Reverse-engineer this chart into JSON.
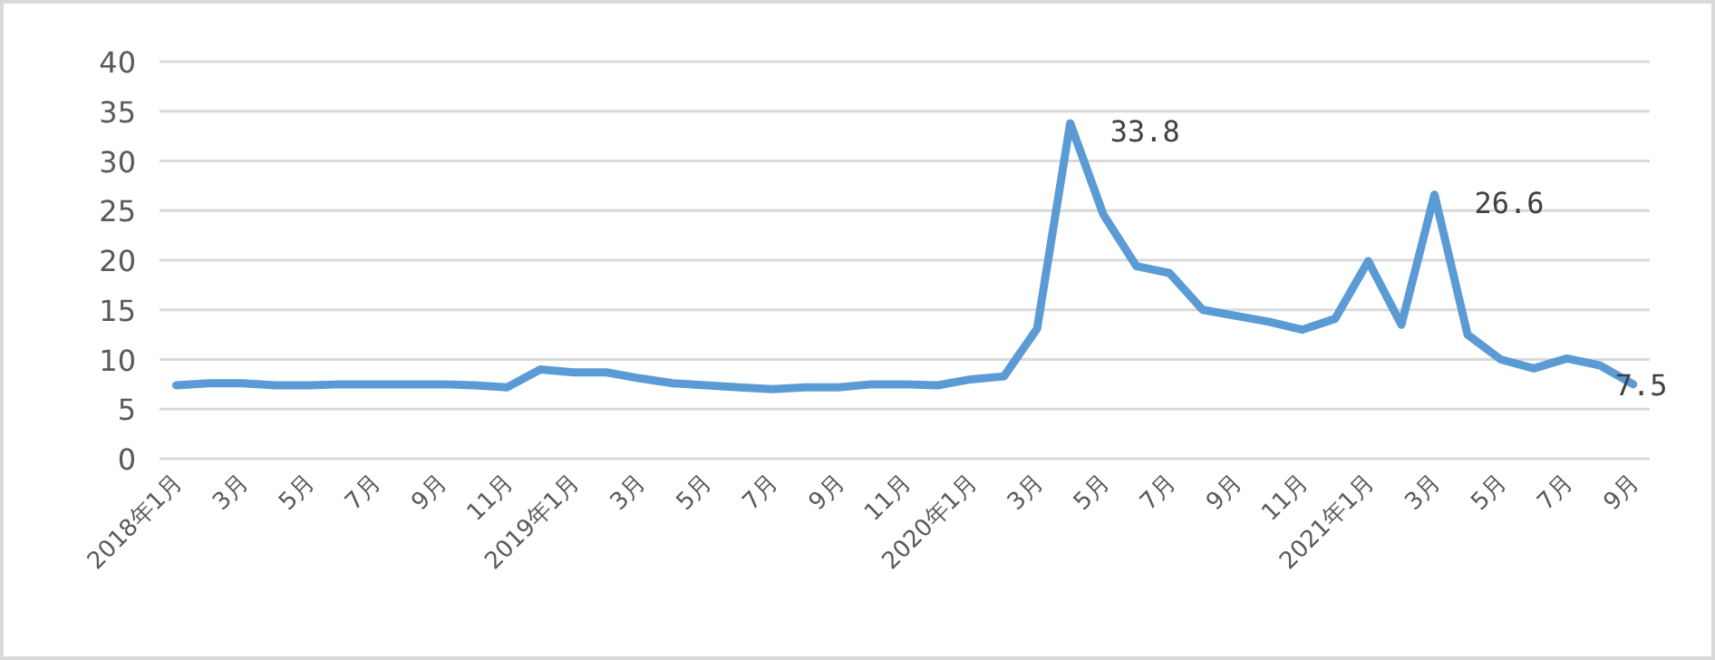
{
  "chart_data": {
    "type": "line",
    "categories": [
      "2018年1月",
      null,
      "3月",
      null,
      "5月",
      null,
      "7月",
      null,
      "9月",
      null,
      "11月",
      null,
      "2019年1月",
      null,
      "3月",
      null,
      "5月",
      null,
      "7月",
      null,
      "9月",
      null,
      "11月",
      null,
      "2020年1月",
      null,
      "3月",
      null,
      "5月",
      null,
      "7月",
      null,
      "9月",
      null,
      "11月",
      null,
      "2021年1月",
      null,
      "3月",
      null,
      "5月",
      null,
      "7月",
      null,
      "9月"
    ],
    "series": [
      {
        "color": "#5b9bd5",
        "values": [
          7.4,
          7.6,
          7.6,
          7.4,
          7.4,
          7.5,
          7.5,
          7.5,
          7.5,
          7.4,
          7.2,
          9.0,
          8.7,
          8.7,
          8.1,
          7.6,
          7.4,
          7.2,
          7.0,
          7.2,
          7.2,
          7.5,
          7.5,
          7.4,
          8.0,
          8.3,
          13.1,
          33.8,
          24.6,
          19.4,
          18.7,
          15.0,
          14.4,
          13.8,
          13.0,
          14.1,
          19.9,
          13.5,
          26.6,
          12.5,
          10.0,
          9.1,
          10.1,
          9.4,
          7.5
        ],
        "value_labels": [
          null,
          null,
          null,
          null,
          null,
          null,
          null,
          null,
          null,
          null,
          null,
          null,
          null,
          null,
          null,
          null,
          null,
          null,
          null,
          null,
          null,
          null,
          null,
          null,
          null,
          null,
          null,
          "33.8",
          null,
          null,
          null,
          null,
          null,
          null,
          null,
          null,
          null,
          null,
          "26.6",
          null,
          null,
          null,
          null,
          null,
          "7.5"
        ]
      }
    ],
    "ylim": [
      0,
      40
    ],
    "yticks": [
      0,
      5,
      10,
      15,
      20,
      25,
      30,
      35,
      40
    ],
    "grid": "y"
  }
}
